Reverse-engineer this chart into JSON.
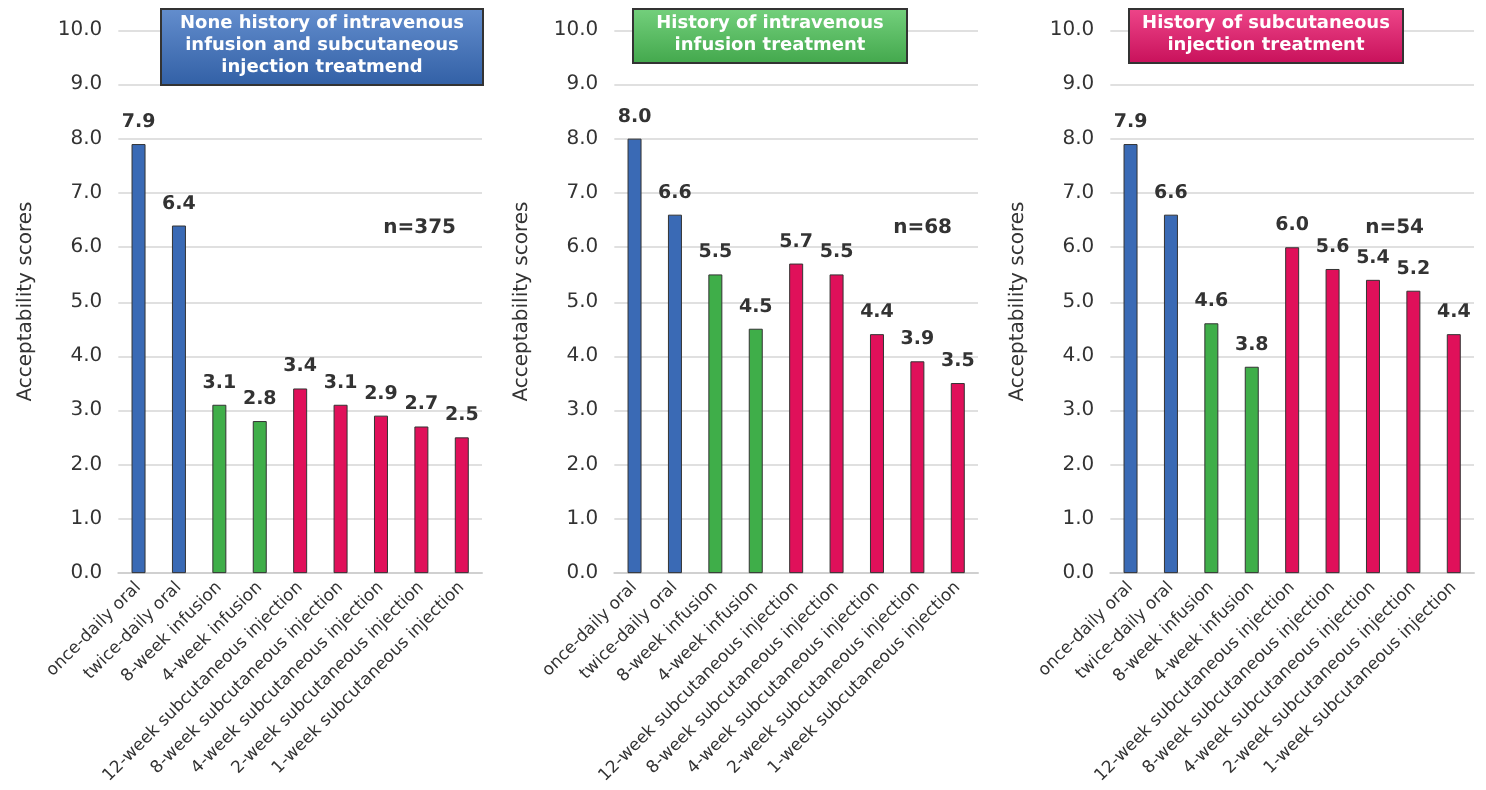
{
  "chart_data": [
    {
      "type": "bar",
      "title": "None history of intravenous infusion and subcutaneous injection treatmend",
      "ylabel": "Acceptability scores",
      "annotations": [
        "n=375"
      ],
      "categories": [
        "once-daily oral",
        "twice-daily oral",
        "8-week infusion",
        "4-week infusion",
        "12-week subcutaneous injection",
        "8-week subcutaneous injection",
        "4-week subcutaneous injection",
        "2-week subcutaneous injection",
        "1-week subcutaneous injection"
      ],
      "values": [
        7.9,
        6.4,
        3.1,
        2.8,
        3.4,
        3.1,
        2.9,
        2.7,
        2.5
      ],
      "value_labels": [
        "7.9",
        "6.4",
        "3.1",
        "2.8",
        "3.4",
        "3.1",
        "2.9",
        "2.7",
        "2.5"
      ],
      "colors": [
        "#3a6ab5",
        "#3a6ab5",
        "#3fae49",
        "#3fae49",
        "#e0105a",
        "#e0105a",
        "#e0105a",
        "#e0105a",
        "#e0105a"
      ],
      "ylim": [
        0,
        10
      ],
      "yticks": [
        {
          "value": 0,
          "label": "0.0"
        },
        {
          "value": 1,
          "label": "1.0"
        },
        {
          "value": 2,
          "label": "2.0"
        },
        {
          "value": 3,
          "label": "3.0"
        },
        {
          "value": 4,
          "label": "4.0"
        },
        {
          "value": 5,
          "label": "5.0"
        },
        {
          "value": 6,
          "label": "6.0"
        },
        {
          "value": 7,
          "label": "7.0"
        },
        {
          "value": 8,
          "label": "8.0"
        },
        {
          "value": 9,
          "label": "9.0"
        },
        {
          "value": 10,
          "label": "10.0"
        }
      ],
      "grid": "y"
    },
    {
      "type": "bar",
      "title": "History of intravenous infusion treatment",
      "ylabel": "Acceptability scores",
      "annotations": [
        "n=68"
      ],
      "categories": [
        "once-daily oral",
        "twice-daily oral",
        "8-week infusion",
        "4-week infusion",
        "12-week subcutaneous injection",
        "8-week subcutaneous injection",
        "4-week subcutaneous injection",
        "2-week subcutaneous injection",
        "1-week subcutaneous injection"
      ],
      "values": [
        8.0,
        6.6,
        5.5,
        4.5,
        5.7,
        5.5,
        4.4,
        3.9,
        3.5
      ],
      "value_labels": [
        "8.0",
        "6.6",
        "5.5",
        "4.5",
        "5.7",
        "5.5",
        "4.4",
        "3.9",
        "3.5"
      ],
      "colors": [
        "#3a6ab5",
        "#3a6ab5",
        "#3fae49",
        "#3fae49",
        "#e0105a",
        "#e0105a",
        "#e0105a",
        "#e0105a",
        "#e0105a"
      ],
      "ylim": [
        0,
        10
      ],
      "yticks": [
        {
          "value": 0,
          "label": "0.0"
        },
        {
          "value": 1,
          "label": "1.0"
        },
        {
          "value": 2,
          "label": "2.0"
        },
        {
          "value": 3,
          "label": "3.0"
        },
        {
          "value": 4,
          "label": "4.0"
        },
        {
          "value": 5,
          "label": "5.0"
        },
        {
          "value": 6,
          "label": "6.0"
        },
        {
          "value": 7,
          "label": "7.0"
        },
        {
          "value": 8,
          "label": "8.0"
        },
        {
          "value": 9,
          "label": "9.0"
        },
        {
          "value": 10,
          "label": "10.0"
        }
      ],
      "grid": "y"
    },
    {
      "type": "bar",
      "title": "History of subcutaneous injection treatment",
      "ylabel": "Acceptability scores",
      "annotations": [
        "n=54"
      ],
      "categories": [
        "once-daily oral",
        "twice-daily oral",
        "8-week infusion",
        "4-week infusion",
        "12-week subcutaneous injection",
        "8-week subcutaneous injection",
        "4-week subcutaneous injection",
        "2-week subcutaneous injection",
        "1-week subcutaneous injection"
      ],
      "values": [
        7.9,
        6.6,
        4.6,
        3.8,
        6.0,
        5.6,
        5.4,
        5.2,
        4.4
      ],
      "value_labels": [
        "7.9",
        "6.6",
        "4.6",
        "3.8",
        "6.0",
        "5.6",
        "5.4",
        "5.2",
        "4.4"
      ],
      "colors": [
        "#3a6ab5",
        "#3a6ab5",
        "#3fae49",
        "#3fae49",
        "#e0105a",
        "#e0105a",
        "#e0105a",
        "#e0105a",
        "#e0105a"
      ],
      "ylim": [
        0,
        10
      ],
      "yticks": [
        {
          "value": 0,
          "label": "0.0"
        },
        {
          "value": 1,
          "label": "1.0"
        },
        {
          "value": 2,
          "label": "2.0"
        },
        {
          "value": 3,
          "label": "3.0"
        },
        {
          "value": 4,
          "label": "4.0"
        },
        {
          "value": 5,
          "label": "5.0"
        },
        {
          "value": 6,
          "label": "6.0"
        },
        {
          "value": 7,
          "label": "7.0"
        },
        {
          "value": 8,
          "label": "8.0"
        },
        {
          "value": 9,
          "label": "9.0"
        },
        {
          "value": 10,
          "label": "10.0"
        }
      ],
      "grid": "y"
    }
  ]
}
